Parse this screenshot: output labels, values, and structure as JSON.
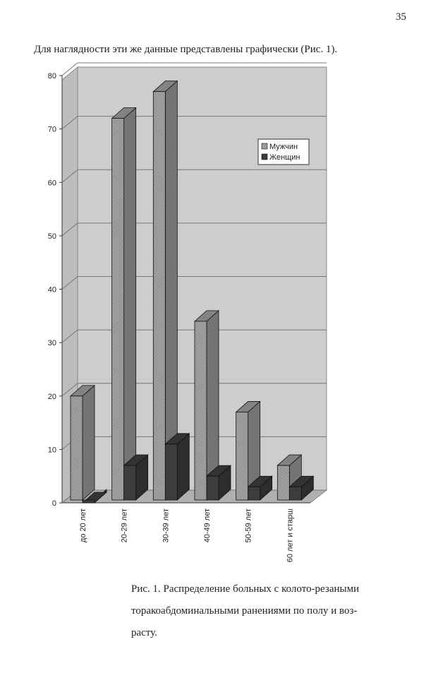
{
  "page_number": "35",
  "intro": "Для наглядности эти же данные представлены графически (Рис. 1).",
  "chart_data": {
    "type": "bar3d",
    "categories": [
      "до 20 лет",
      "20-29 лет",
      "30-39 лет",
      "40-49 лет",
      "50-59 лет",
      "60 лет и старш"
    ],
    "series": [
      {
        "name": "Мужчин",
        "color": "#9a9a9a",
        "values": [
          20,
          72,
          77,
          34,
          17,
          7
        ]
      },
      {
        "name": "Женщин",
        "color": "#3c3c3c",
        "values": [
          0,
          7,
          11,
          5,
          3,
          3
        ]
      }
    ],
    "ylim": [
      0,
      80
    ],
    "yticks": [
      0,
      10,
      20,
      30,
      40,
      50,
      60,
      70,
      80
    ],
    "grid": true,
    "legend": "upper right"
  },
  "caption": [
    "Рис. 1. Распределение больных с колото-резаными",
    "торакоабдоминальными ранениями по полу и воз-",
    "расту."
  ]
}
